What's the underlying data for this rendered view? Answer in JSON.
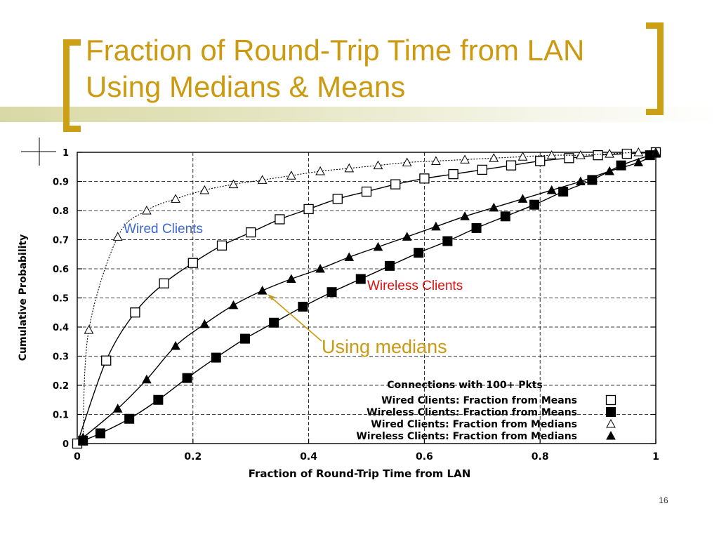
{
  "slide": {
    "title_line1": "Fraction of Round-Trip Time from LAN",
    "title_line2": "Using Medians & Means",
    "page_number": "16",
    "accent_color": "#cc9a10"
  },
  "chart_data": {
    "type": "line",
    "xlabel": "Fraction of Round-Trip Time from LAN",
    "ylabel": "Cumulative Probability",
    "xlim": [
      0,
      1
    ],
    "ylim": [
      0,
      1
    ],
    "x_ticks": [
      "0",
      "0.2",
      "0.4",
      "0.6",
      "0.8",
      "1"
    ],
    "y_ticks": [
      "0",
      "0.1",
      "0.2",
      "0.3",
      "0.4",
      "0.5",
      "0.6",
      "0.7",
      "0.8",
      "0.9",
      "1"
    ],
    "grid": true,
    "legend_title": "Connections with 100+ Pkts",
    "legend_position": "bottom-right",
    "series": [
      {
        "name": "Wired Clients: Fraction from Means",
        "marker": "open-square",
        "points": [
          [
            0,
            0
          ],
          [
            0.05,
            0.285
          ],
          [
            0.1,
            0.45
          ],
          [
            0.15,
            0.55
          ],
          [
            0.2,
            0.62
          ],
          [
            0.25,
            0.68
          ],
          [
            0.3,
            0.725
          ],
          [
            0.35,
            0.77
          ],
          [
            0.4,
            0.805
          ],
          [
            0.45,
            0.84
          ],
          [
            0.5,
            0.865
          ],
          [
            0.55,
            0.89
          ],
          [
            0.6,
            0.91
          ],
          [
            0.65,
            0.925
          ],
          [
            0.7,
            0.94
          ],
          [
            0.75,
            0.955
          ],
          [
            0.8,
            0.97
          ],
          [
            0.85,
            0.98
          ],
          [
            0.9,
            0.99
          ],
          [
            0.95,
            0.995
          ],
          [
            1,
            1
          ]
        ]
      },
      {
        "name": "Wireless Clients: Fraction from Means",
        "marker": "filled-square",
        "points": [
          [
            0.01,
            0.01
          ],
          [
            0.04,
            0.035
          ],
          [
            0.09,
            0.085
          ],
          [
            0.14,
            0.15
          ],
          [
            0.19,
            0.225
          ],
          [
            0.24,
            0.295
          ],
          [
            0.29,
            0.36
          ],
          [
            0.34,
            0.415
          ],
          [
            0.39,
            0.47
          ],
          [
            0.44,
            0.52
          ],
          [
            0.49,
            0.565
          ],
          [
            0.54,
            0.61
          ],
          [
            0.59,
            0.655
          ],
          [
            0.64,
            0.695
          ],
          [
            0.69,
            0.74
          ],
          [
            0.74,
            0.78
          ],
          [
            0.79,
            0.82
          ],
          [
            0.84,
            0.865
          ],
          [
            0.89,
            0.905
          ],
          [
            0.94,
            0.955
          ],
          [
            0.99,
            0.99
          ]
        ]
      },
      {
        "name": "Wired Clients: Fraction from Medians",
        "marker": "open-triangle",
        "points": [
          [
            0.01,
            0.02
          ],
          [
            0.02,
            0.39
          ],
          [
            0.07,
            0.71
          ],
          [
            0.12,
            0.8
          ],
          [
            0.17,
            0.84
          ],
          [
            0.22,
            0.87
          ],
          [
            0.27,
            0.89
          ],
          [
            0.32,
            0.905
          ],
          [
            0.37,
            0.92
          ],
          [
            0.42,
            0.935
          ],
          [
            0.47,
            0.945
          ],
          [
            0.52,
            0.955
          ],
          [
            0.57,
            0.965
          ],
          [
            0.62,
            0.97
          ],
          [
            0.67,
            0.975
          ],
          [
            0.72,
            0.98
          ],
          [
            0.77,
            0.985
          ],
          [
            0.82,
            0.99
          ],
          [
            0.87,
            0.99
          ],
          [
            0.92,
            0.995
          ],
          [
            0.97,
            1
          ],
          [
            1,
            1
          ]
        ]
      },
      {
        "name": "Wireless Clients: Fraction from Medians",
        "marker": "filled-triangle",
        "points": [
          [
            0.01,
            0.02
          ],
          [
            0.07,
            0.12
          ],
          [
            0.12,
            0.22
          ],
          [
            0.17,
            0.335
          ],
          [
            0.22,
            0.41
          ],
          [
            0.27,
            0.475
          ],
          [
            0.32,
            0.525
          ],
          [
            0.37,
            0.565
          ],
          [
            0.42,
            0.6
          ],
          [
            0.47,
            0.64
          ],
          [
            0.52,
            0.675
          ],
          [
            0.57,
            0.71
          ],
          [
            0.62,
            0.745
          ],
          [
            0.67,
            0.78
          ],
          [
            0.72,
            0.81
          ],
          [
            0.77,
            0.84
          ],
          [
            0.82,
            0.87
          ],
          [
            0.87,
            0.9
          ],
          [
            0.92,
            0.935
          ],
          [
            0.97,
            0.965
          ],
          [
            1,
            0.995
          ]
        ]
      }
    ],
    "annotations": [
      {
        "text": "Wired Clients",
        "color": "#3a66cc"
      },
      {
        "text": "Wireless Clients",
        "color": "#dd1111"
      },
      {
        "text": "Using medians",
        "color": "#cc9a10"
      }
    ]
  }
}
